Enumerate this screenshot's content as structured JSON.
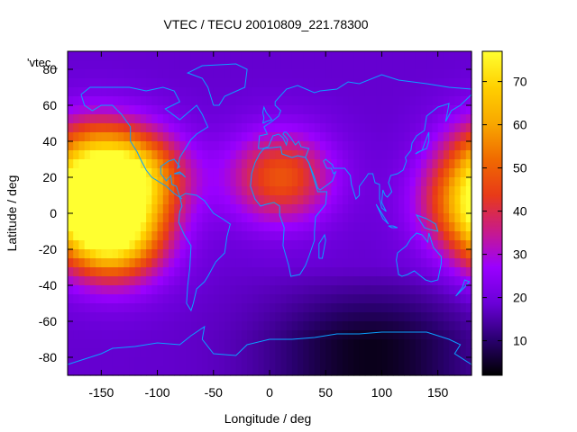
{
  "chart_data": {
    "type": "heatmap",
    "title": "VTEC / TECU 20010809_221.78300",
    "xlabel": "Longitude / deg",
    "ylabel": "Latitude / deg",
    "key_label": "'vtec_",
    "xlim": [
      -180,
      180
    ],
    "ylim": [
      -90,
      90
    ],
    "x_ticks": [
      -150,
      -100,
      -50,
      0,
      50,
      100,
      150
    ],
    "y_ticks": [
      -80,
      -60,
      -40,
      -20,
      0,
      20,
      40,
      60,
      80
    ],
    "colorbar": {
      "range": [
        2,
        77
      ],
      "ticks": [
        10,
        20,
        30,
        40,
        50,
        60,
        70
      ],
      "palette": [
        "#000000",
        "#2a0070",
        "#6a00d8",
        "#9a00ff",
        "#c81a8a",
        "#e83a18",
        "#f06a00",
        "#f8a800",
        "#ffd000",
        "#ffff30"
      ]
    },
    "enhancements": [
      {
        "lon": -140,
        "lat": -12,
        "peak": 76
      },
      {
        "lon": -120,
        "lat": 20,
        "peak": 62
      },
      {
        "lon": 10,
        "lat": 20,
        "peak": 48
      },
      {
        "lon": 180,
        "lat": 5,
        "peak": 52
      },
      {
        "lon": -160,
        "lat": 30,
        "peak": 50
      }
    ],
    "base_level": 18,
    "coastline_color": "#0aa0ff",
    "grid": false,
    "legend": "top-left"
  }
}
